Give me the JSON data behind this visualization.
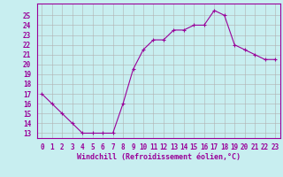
{
  "x": [
    0,
    1,
    2,
    3,
    4,
    5,
    6,
    7,
    8,
    9,
    10,
    11,
    12,
    13,
    14,
    15,
    16,
    17,
    18,
    19,
    20,
    21,
    22,
    23
  ],
  "y": [
    17,
    16,
    15,
    14,
    13,
    13,
    13,
    13,
    16,
    19.5,
    21.5,
    22.5,
    22.5,
    23.5,
    23.5,
    24,
    24,
    25.5,
    25,
    22,
    21.5,
    21,
    20.5,
    20.5
  ],
  "line_color": "#990099",
  "marker": "+",
  "bg_color": "#c8eef0",
  "grid_color": "#b0b0b0",
  "xlabel": "Windchill (Refroidissement éolien,°C)",
  "yticks": [
    13,
    14,
    15,
    16,
    17,
    18,
    19,
    20,
    21,
    22,
    23,
    24,
    25
  ],
  "xticks": [
    0,
    1,
    2,
    3,
    4,
    5,
    6,
    7,
    8,
    9,
    10,
    11,
    12,
    13,
    14,
    15,
    16,
    17,
    18,
    19,
    20,
    21,
    22,
    23
  ],
  "ylim": [
    12.5,
    26.2
  ],
  "xlim": [
    -0.5,
    23.5
  ],
  "label_fontsize": 6.0,
  "tick_fontsize": 5.5
}
